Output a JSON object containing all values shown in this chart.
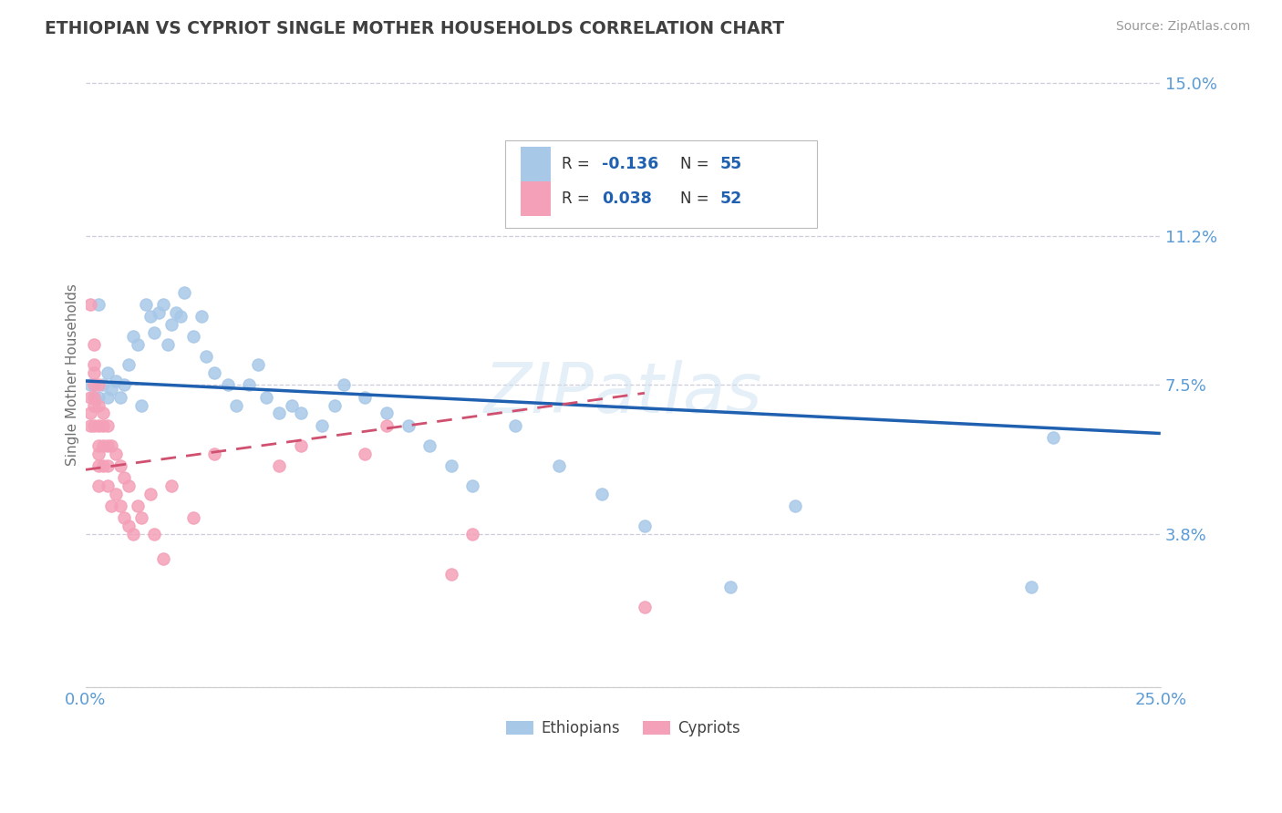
{
  "title": "ETHIOPIAN VS CYPRIOT SINGLE MOTHER HOUSEHOLDS CORRELATION CHART",
  "source": "Source: ZipAtlas.com",
  "ylabel": "Single Mother Households",
  "xlim": [
    0.0,
    0.25
  ],
  "ylim": [
    0.0,
    0.155
  ],
  "yticks": [
    0.0,
    0.038,
    0.075,
    0.112,
    0.15
  ],
  "ytick_labels": [
    "",
    "3.8%",
    "7.5%",
    "11.2%",
    "15.0%"
  ],
  "xtick_labels": [
    "0.0%",
    "25.0%"
  ],
  "ethiopian_color": "#a8c8e8",
  "cypriot_color": "#f4a0b8",
  "trend_ethiopian_color": "#2060b0",
  "trend_cypriot_color": "#d05070",
  "background_color": "#ffffff",
  "grid_color": "#c8c8d8",
  "title_color": "#404040",
  "axis_label_color": "#5b9bd5",
  "eth_r": "-0.136",
  "eth_n": "55",
  "cyp_r": "0.038",
  "cyp_n": "52",
  "eth_trend_x0": 0.0,
  "eth_trend_y0": 0.076,
  "eth_trend_x1": 0.25,
  "eth_trend_y1": 0.063,
  "cyp_trend_x0": 0.0,
  "cyp_trend_y0": 0.054,
  "cyp_trend_x1": 0.13,
  "cyp_trend_y1": 0.073,
  "ethiopians_x": [
    0.001,
    0.002,
    0.002,
    0.003,
    0.003,
    0.004,
    0.005,
    0.005,
    0.006,
    0.007,
    0.008,
    0.009,
    0.01,
    0.011,
    0.012,
    0.013,
    0.014,
    0.015,
    0.016,
    0.017,
    0.018,
    0.019,
    0.02,
    0.021,
    0.022,
    0.023,
    0.025,
    0.027,
    0.028,
    0.03,
    0.033,
    0.035,
    0.038,
    0.04,
    0.042,
    0.045,
    0.048,
    0.05,
    0.055,
    0.058,
    0.06,
    0.065,
    0.07,
    0.075,
    0.08,
    0.085,
    0.09,
    0.1,
    0.11,
    0.12,
    0.13,
    0.15,
    0.165,
    0.22,
    0.225
  ],
  "ethiopians_y": [
    0.075,
    0.075,
    0.072,
    0.072,
    0.095,
    0.075,
    0.072,
    0.078,
    0.074,
    0.076,
    0.072,
    0.075,
    0.08,
    0.087,
    0.085,
    0.07,
    0.095,
    0.092,
    0.088,
    0.093,
    0.095,
    0.085,
    0.09,
    0.093,
    0.092,
    0.098,
    0.087,
    0.092,
    0.082,
    0.078,
    0.075,
    0.07,
    0.075,
    0.08,
    0.072,
    0.068,
    0.07,
    0.068,
    0.065,
    0.07,
    0.075,
    0.072,
    0.068,
    0.065,
    0.06,
    0.055,
    0.05,
    0.065,
    0.055,
    0.048,
    0.04,
    0.025,
    0.045,
    0.025,
    0.062
  ],
  "cypriots_x": [
    0.001,
    0.001,
    0.001,
    0.001,
    0.002,
    0.002,
    0.002,
    0.002,
    0.002,
    0.002,
    0.002,
    0.003,
    0.003,
    0.003,
    0.003,
    0.003,
    0.003,
    0.003,
    0.004,
    0.004,
    0.004,
    0.004,
    0.005,
    0.005,
    0.005,
    0.005,
    0.006,
    0.006,
    0.007,
    0.007,
    0.008,
    0.008,
    0.009,
    0.009,
    0.01,
    0.01,
    0.011,
    0.012,
    0.013,
    0.015,
    0.016,
    0.018,
    0.02,
    0.025,
    0.03,
    0.045,
    0.05,
    0.065,
    0.07,
    0.085,
    0.09,
    0.13
  ],
  "cypriots_y": [
    0.095,
    0.072,
    0.068,
    0.065,
    0.085,
    0.08,
    0.078,
    0.075,
    0.072,
    0.07,
    0.065,
    0.075,
    0.07,
    0.065,
    0.06,
    0.058,
    0.055,
    0.05,
    0.068,
    0.065,
    0.06,
    0.055,
    0.065,
    0.06,
    0.055,
    0.05,
    0.06,
    0.045,
    0.058,
    0.048,
    0.055,
    0.045,
    0.052,
    0.042,
    0.05,
    0.04,
    0.038,
    0.045,
    0.042,
    0.048,
    0.038,
    0.032,
    0.05,
    0.042,
    0.058,
    0.055,
    0.06,
    0.058,
    0.065,
    0.028,
    0.038,
    0.02
  ]
}
